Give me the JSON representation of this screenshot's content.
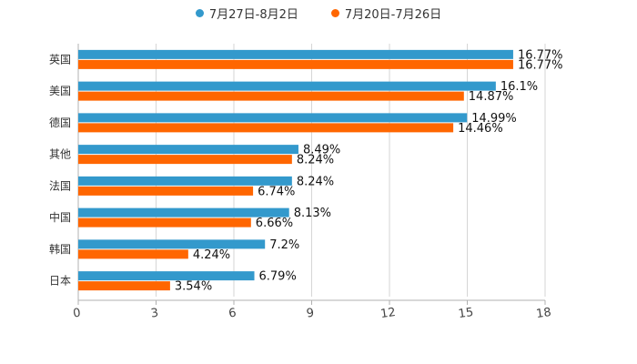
{
  "chart_data": {
    "type": "bar",
    "orientation": "horizontal",
    "title": "",
    "xlabel": "",
    "ylabel": "",
    "categories": [
      "英国",
      "美国",
      "德国",
      "其他",
      "法国",
      "中国",
      "韩国",
      "日本"
    ],
    "series": [
      {
        "name": "7月27日-8月2日",
        "color": "#3399cc",
        "values": [
          16.77,
          16.1,
          14.99,
          8.49,
          8.24,
          8.13,
          7.2,
          6.79
        ],
        "labels": [
          "16.77%",
          "16.1%",
          "14.99%",
          "8.49%",
          "8.24%",
          "8.13%",
          "7.2%",
          "6.79%"
        ]
      },
      {
        "name": "7月20日-7月26日",
        "color": "#ff6600",
        "values": [
          16.77,
          14.87,
          14.46,
          8.24,
          6.74,
          6.66,
          4.24,
          3.54
        ],
        "labels": [
          "16.77%",
          "14.87%",
          "14.46%",
          "8.24%",
          "6.74%",
          "6.66%",
          "4.24%",
          "3.54%"
        ]
      }
    ],
    "xlim": [
      0,
      18
    ],
    "xticks": [
      0,
      3,
      6,
      9,
      12,
      15,
      18
    ],
    "xtick_labels": [
      "0",
      "3",
      "6",
      "9",
      "12",
      "15",
      "18"
    ],
    "grid": true,
    "legend_position": "top-center"
  }
}
